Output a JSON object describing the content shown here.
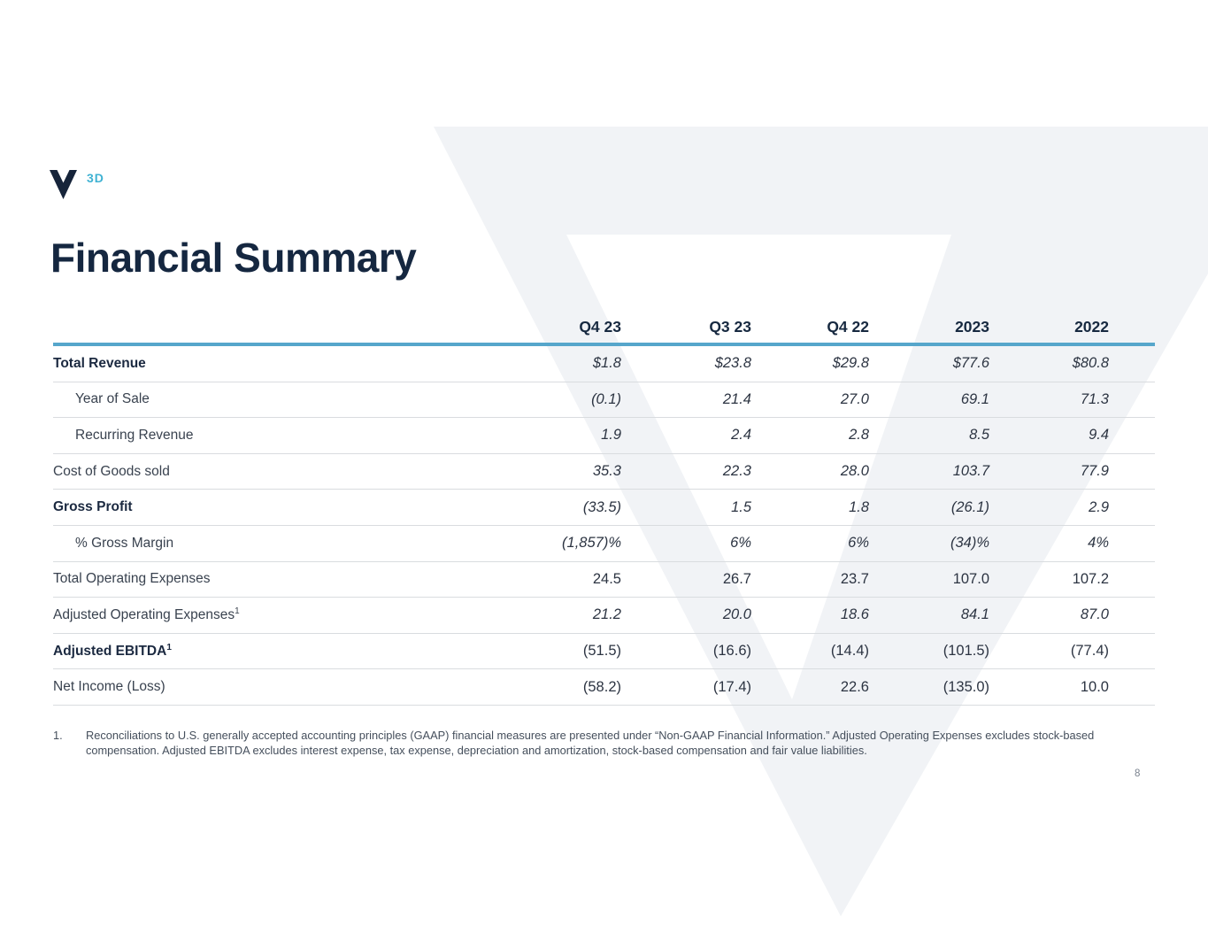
{
  "logo": {
    "suffix": "3D"
  },
  "page_title": "Financial Summary",
  "table": {
    "columns": [
      "Q4 23",
      "Q3 23",
      "Q4 22",
      "2023",
      "2022"
    ],
    "rows": [
      {
        "label": "Total Revenue",
        "sup": "",
        "bold": true,
        "indent": false,
        "italic": true,
        "values": [
          "$1.8",
          "$23.8",
          "$29.8",
          "$77.6",
          "$80.8"
        ]
      },
      {
        "label": "Year of Sale",
        "sup": "",
        "bold": false,
        "indent": true,
        "italic": true,
        "values": [
          "(0.1)",
          "21.4",
          "27.0",
          "69.1",
          "71.3"
        ]
      },
      {
        "label": "Recurring Revenue",
        "sup": "",
        "bold": false,
        "indent": true,
        "italic": true,
        "values": [
          "1.9",
          "2.4",
          "2.8",
          "8.5",
          "9.4"
        ]
      },
      {
        "label": "Cost of Goods sold",
        "sup": "",
        "bold": false,
        "indent": false,
        "italic": true,
        "values": [
          "35.3",
          "22.3",
          "28.0",
          "103.7",
          "77.9"
        ]
      },
      {
        "label": "Gross Profit",
        "sup": "",
        "bold": true,
        "indent": false,
        "italic": true,
        "values": [
          "(33.5)",
          "1.5",
          "1.8",
          "(26.1)",
          "2.9"
        ]
      },
      {
        "label": "% Gross Margin",
        "sup": "",
        "bold": false,
        "indent": true,
        "italic": true,
        "values": [
          "(1,857)%",
          "6%",
          "6%",
          "(34)%",
          "4%"
        ]
      },
      {
        "label": "Total Operating Expenses",
        "sup": "",
        "bold": false,
        "indent": false,
        "italic": false,
        "values": [
          "24.5",
          "26.7",
          "23.7",
          "107.0",
          "107.2"
        ]
      },
      {
        "label": "Adjusted Operating Expenses",
        "sup": "1",
        "bold": false,
        "indent": false,
        "italic": true,
        "values": [
          "21.2",
          "20.0",
          "18.6",
          "84.1",
          "87.0"
        ]
      },
      {
        "label": "Adjusted EBITDA",
        "sup": "1",
        "bold": true,
        "indent": false,
        "italic": false,
        "values": [
          "(51.5)",
          "(16.6)",
          "(14.4)",
          "(101.5)",
          "(77.4)"
        ]
      },
      {
        "label": "Net Income (Loss)",
        "sup": "",
        "bold": false,
        "indent": false,
        "italic": false,
        "values": [
          "(58.2)",
          "(17.4)",
          "22.6",
          "(135.0)",
          "10.0"
        ]
      }
    ]
  },
  "footnote": {
    "marker": "1.",
    "text": "Reconciliations to U.S. generally accepted accounting principles (GAAP) financial measures are presented under “Non-GAAP Financial Information.”  Adjusted Operating Expenses excludes stock-based compensation.  Adjusted EBITDA excludes interest expense, tax expense, depreciation and amortization, stock-based compensation and fair value liabilities."
  },
  "page_number": "8",
  "colors": {
    "navy": "#152740",
    "accent_line": "#56a6cb",
    "logo_accent": "#3fb2d3",
    "watermark": "#f1f3f6",
    "row_divider": "#d9dcdf"
  }
}
